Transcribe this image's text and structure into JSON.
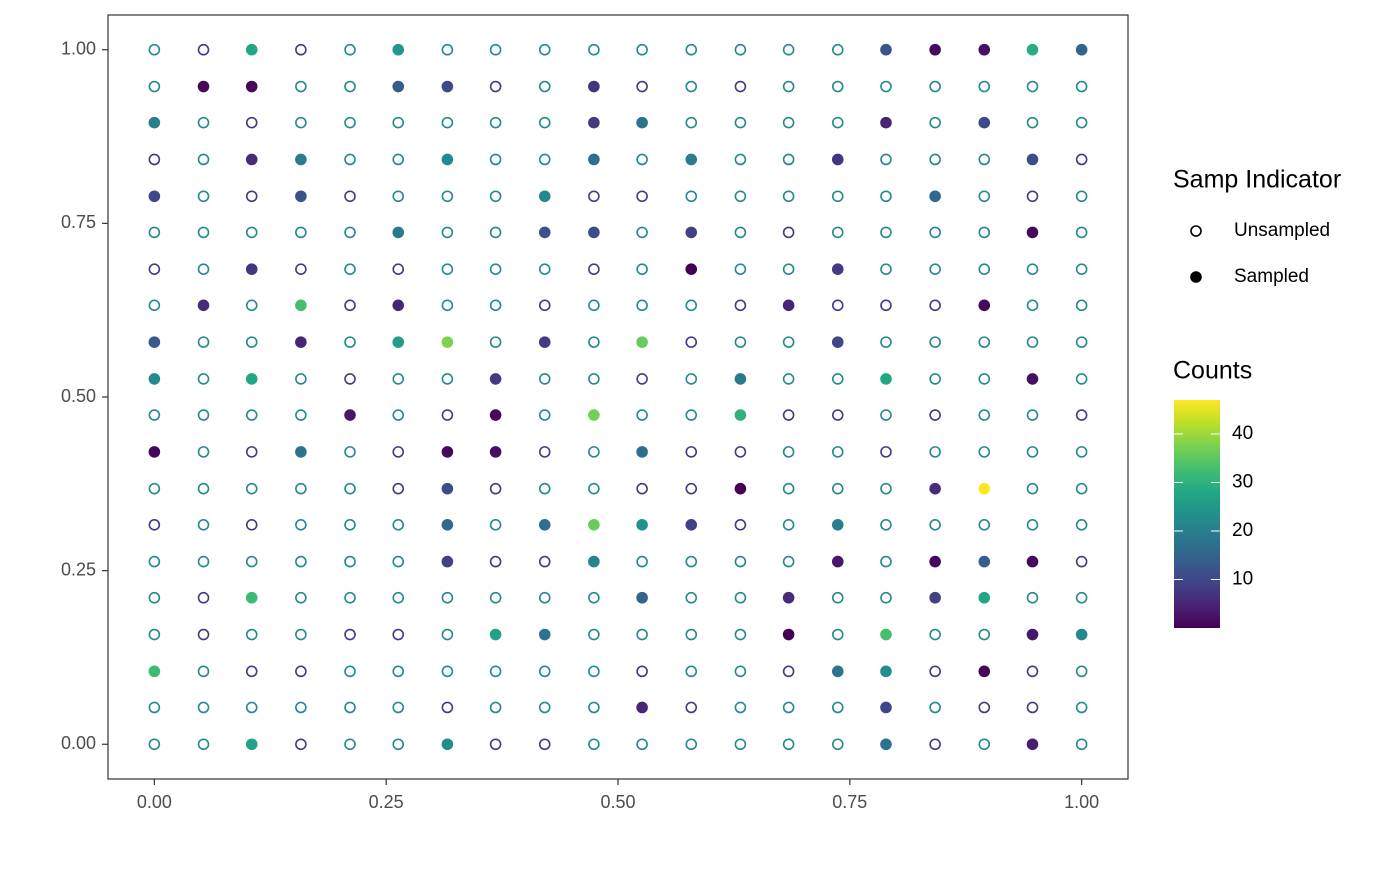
{
  "chart_data": {
    "type": "scatter",
    "x": [
      0,
      0.053,
      0.105,
      0.158,
      0.211,
      0.263,
      0.316,
      0.368,
      0.421,
      0.474,
      0.526,
      0.579,
      0.632,
      0.684,
      0.737,
      0.789,
      0.842,
      0.895,
      0.947,
      1
    ],
    "y": [
      1,
      0.947,
      0.895,
      0.842,
      0.789,
      0.737,
      0.684,
      0.632,
      0.579,
      0.526,
      0.474,
      0.421,
      0.368,
      0.316,
      0.263,
      0.211,
      0.158,
      0.105,
      0.053,
      0
    ],
    "counts": [
      [
        22,
        8,
        28,
        8,
        22,
        25,
        22,
        22,
        22,
        22,
        22,
        22,
        22,
        22,
        22,
        12,
        1,
        2,
        29,
        15
      ],
      [
        22,
        1,
        1,
        22,
        22,
        14,
        10,
        8,
        22,
        7,
        8,
        22,
        8,
        22,
        22,
        22,
        22,
        22,
        22,
        22
      ],
      [
        20,
        22,
        8,
        22,
        22,
        22,
        22,
        22,
        22,
        8,
        18,
        22,
        22,
        22,
        22,
        5,
        22,
        10,
        22,
        22
      ],
      [
        8,
        22,
        6,
        20,
        22,
        22,
        22,
        22,
        22,
        17,
        22,
        20,
        22,
        22,
        7,
        22,
        22,
        22,
        11,
        8
      ],
      [
        10,
        22,
        8,
        12,
        8,
        22,
        22,
        22,
        22,
        8,
        8,
        22,
        22,
        22,
        22,
        22,
        16,
        22,
        8,
        22
      ],
      [
        22,
        22,
        22,
        22,
        22,
        19,
        22,
        22,
        12,
        11,
        22,
        9,
        22,
        8,
        22,
        22,
        22,
        22,
        1,
        22
      ],
      [
        8,
        22,
        7,
        8,
        22,
        8,
        22,
        22,
        22,
        8,
        22,
        0,
        22,
        22,
        8,
        22,
        22,
        22,
        22,
        22
      ],
      [
        22,
        6,
        22,
        33,
        8,
        5,
        22,
        22,
        8,
        22,
        22,
        22,
        8,
        5,
        8,
        8,
        8,
        1,
        22,
        22
      ],
      [
        13,
        22,
        22,
        5,
        22,
        26,
        38,
        22,
        8,
        22,
        36,
        8,
        22,
        22,
        10,
        22,
        22,
        22,
        22,
        22
      ],
      [
        22,
        22,
        28,
        22,
        8,
        22,
        22,
        8,
        22,
        22,
        8,
        22,
        19,
        22,
        22,
        28,
        22,
        22,
        2,
        22
      ],
      [
        22,
        22,
        22,
        22,
        3,
        22,
        8,
        1,
        22,
        37,
        22,
        22,
        30,
        8,
        8,
        22,
        8,
        22,
        22,
        8
      ],
      [
        1,
        22,
        8,
        18,
        22,
        8,
        1,
        2,
        8,
        22,
        17,
        8,
        8,
        22,
        22,
        8,
        22,
        22,
        22,
        22
      ],
      [
        22,
        22,
        22,
        22,
        22,
        8,
        11,
        8,
        22,
        22,
        8,
        8,
        0,
        22,
        22,
        22,
        6,
        47,
        22,
        22
      ],
      [
        8,
        22,
        8,
        22,
        22,
        22,
        16,
        22,
        17,
        36,
        24,
        9,
        8,
        22,
        20,
        22,
        22,
        22,
        22,
        22
      ],
      [
        22,
        22,
        22,
        22,
        22,
        22,
        9,
        8,
        8,
        21,
        22,
        22,
        22,
        22,
        3,
        22,
        1,
        14,
        1,
        8
      ],
      [
        22,
        8,
        32,
        22,
        22,
        22,
        22,
        22,
        22,
        22,
        15,
        22,
        22,
        6,
        22,
        22,
        9,
        28,
        22,
        22
      ],
      [
        22,
        8,
        22,
        22,
        8,
        8,
        22,
        27,
        18,
        22,
        22,
        22,
        22,
        0,
        22,
        33,
        22,
        22,
        3,
        22
      ],
      [
        32,
        22,
        8,
        8,
        22,
        22,
        22,
        22,
        22,
        22,
        8,
        22,
        22,
        8,
        18,
        23,
        8,
        1,
        8,
        22
      ],
      [
        22,
        22,
        22,
        22,
        22,
        22,
        8,
        22,
        22,
        22,
        5,
        8,
        22,
        22,
        22,
        10,
        22,
        8,
        8,
        22
      ],
      [
        22,
        22,
        27,
        8,
        22,
        22,
        23,
        8,
        8,
        22,
        22,
        22,
        22,
        22,
        22,
        18,
        8,
        22,
        4,
        22
      ]
    ],
    "sampled": [
      [
        0,
        0,
        1,
        0,
        0,
        1,
        0,
        0,
        0,
        0,
        0,
        0,
        0,
        0,
        0,
        1,
        1,
        1,
        1,
        1
      ],
      [
        0,
        1,
        1,
        0,
        0,
        1,
        1,
        0,
        0,
        1,
        0,
        0,
        0,
        0,
        0,
        0,
        0,
        0,
        0,
        0
      ],
      [
        1,
        0,
        0,
        0,
        0,
        0,
        0,
        0,
        0,
        1,
        1,
        0,
        0,
        0,
        0,
        1,
        0,
        1,
        0,
        0
      ],
      [
        0,
        0,
        1,
        1,
        0,
        0,
        1,
        0,
        0,
        1,
        0,
        1,
        0,
        0,
        1,
        0,
        0,
        0,
        1,
        0
      ],
      [
        1,
        0,
        0,
        1,
        0,
        0,
        0,
        0,
        1,
        0,
        0,
        0,
        0,
        0,
        0,
        0,
        1,
        0,
        0,
        0
      ],
      [
        0,
        0,
        0,
        0,
        0,
        1,
        0,
        0,
        1,
        1,
        0,
        1,
        0,
        0,
        0,
        0,
        0,
        0,
        1,
        0
      ],
      [
        0,
        0,
        1,
        0,
        0,
        0,
        0,
        0,
        0,
        0,
        0,
        1,
        0,
        0,
        1,
        0,
        0,
        0,
        0,
        0
      ],
      [
        0,
        1,
        0,
        1,
        0,
        1,
        0,
        0,
        0,
        0,
        0,
        0,
        0,
        1,
        0,
        0,
        0,
        1,
        0,
        0
      ],
      [
        1,
        0,
        0,
        1,
        0,
        1,
        1,
        0,
        1,
        0,
        1,
        0,
        0,
        0,
        1,
        0,
        0,
        0,
        0,
        0
      ],
      [
        1,
        0,
        1,
        0,
        0,
        0,
        0,
        1,
        0,
        0,
        0,
        0,
        1,
        0,
        0,
        1,
        0,
        0,
        1,
        0
      ],
      [
        0,
        0,
        0,
        0,
        1,
        0,
        0,
        1,
        0,
        1,
        0,
        0,
        1,
        0,
        0,
        0,
        0,
        0,
        0,
        0
      ],
      [
        1,
        0,
        0,
        1,
        0,
        0,
        1,
        1,
        0,
        0,
        1,
        0,
        0,
        0,
        0,
        0,
        0,
        0,
        0,
        0
      ],
      [
        0,
        0,
        0,
        0,
        0,
        0,
        1,
        0,
        0,
        0,
        0,
        0,
        1,
        0,
        0,
        0,
        1,
        1,
        0,
        0
      ],
      [
        0,
        0,
        0,
        0,
        0,
        0,
        1,
        0,
        1,
        1,
        1,
        1,
        0,
        0,
        1,
        0,
        0,
        0,
        0,
        0
      ],
      [
        0,
        0,
        0,
        0,
        0,
        0,
        1,
        0,
        0,
        1,
        0,
        0,
        0,
        0,
        1,
        0,
        1,
        1,
        1,
        0
      ],
      [
        0,
        0,
        1,
        0,
        0,
        0,
        0,
        0,
        0,
        0,
        1,
        0,
        0,
        1,
        0,
        0,
        1,
        1,
        0,
        0
      ],
      [
        0,
        0,
        0,
        0,
        0,
        0,
        0,
        1,
        1,
        0,
        0,
        0,
        0,
        1,
        0,
        1,
        0,
        0,
        1,
        1
      ],
      [
        1,
        0,
        0,
        0,
        0,
        0,
        0,
        0,
        0,
        0,
        0,
        0,
        0,
        0,
        1,
        1,
        0,
        1,
        0,
        0
      ],
      [
        0,
        0,
        0,
        0,
        0,
        0,
        0,
        0,
        0,
        0,
        1,
        0,
        0,
        0,
        0,
        1,
        0,
        0,
        0,
        0
      ],
      [
        0,
        0,
        1,
        0,
        0,
        0,
        1,
        0,
        0,
        0,
        0,
        0,
        0,
        0,
        0,
        1,
        0,
        0,
        1,
        0
      ]
    ],
    "xlim": [
      -0.05,
      1.05
    ],
    "ylim": [
      -0.05,
      1.05
    ],
    "xticks": [
      {
        "value": 0,
        "label": "0.00"
      },
      0.25,
      {
        "value": 0.5,
        "label": "0.50"
      },
      0.75,
      {
        "value": 1,
        "label": "1.00"
      }
    ],
    "yticks": [
      {
        "value": 0,
        "label": "0.00"
      },
      0.25,
      {
        "value": 0.5,
        "label": "0.50"
      },
      0.75,
      {
        "value": 1,
        "label": "1.00"
      }
    ],
    "grid": false,
    "shape_legend": {
      "title": "Samp Indicator",
      "labels": [
        "Unsampled",
        "Sampled"
      ]
    },
    "colorbar": {
      "title": "Counts",
      "lim": [
        0,
        47
      ],
      "ticks": [
        10,
        20,
        30,
        40
      ],
      "colormap": [
        "#440154",
        "#482475",
        "#414487",
        "#355f8d",
        "#2a788e",
        "#21918c",
        "#22a884",
        "#44bf70",
        "#7ad151",
        "#bddf26",
        "#fde725"
      ]
    }
  }
}
